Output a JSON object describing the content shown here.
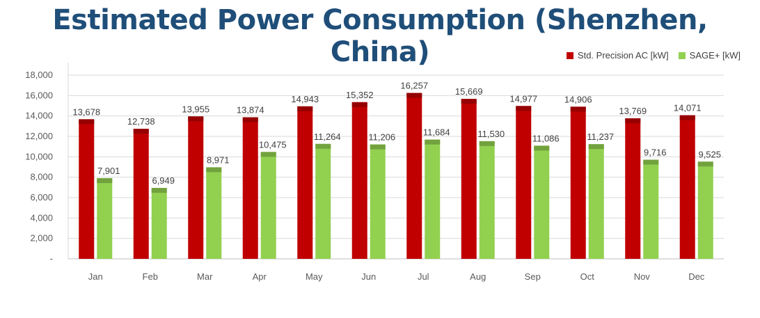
{
  "chart_data": {
    "type": "bar",
    "title": "Estimated Power Consumption (Shenzhen, China)",
    "categories": [
      "Jan",
      "Feb",
      "Mar",
      "Apr",
      "May",
      "Jun",
      "Jul",
      "Aug",
      "Sep",
      "Oct",
      "Nov",
      "Dec"
    ],
    "series": [
      {
        "name": "Std. Precision AC [kW]",
        "color": "#c00000",
        "values": [
          13678,
          12738,
          13955,
          13874,
          14943,
          15352,
          16257,
          15669,
          14977,
          14906,
          13769,
          14071
        ],
        "labels": [
          "13,678",
          "12,738",
          "13,955",
          "13,874",
          "14,943",
          "15,352",
          "16,257",
          "15,669",
          "14,977",
          "14,906",
          "13,769",
          "14,071"
        ]
      },
      {
        "name": "SAGE+ [kW]",
        "color": "#92d050",
        "values": [
          7901,
          6949,
          8971,
          10475,
          11264,
          11206,
          11684,
          11530,
          11086,
          11237,
          9716,
          9525
        ],
        "labels": [
          "7,901",
          "6,949",
          "8,971",
          "10,475",
          "11,264",
          "11,206",
          "11,684",
          "11,530",
          "11,086",
          "11,237",
          "9,716",
          "9,525"
        ]
      }
    ],
    "yticks": [
      "-",
      "2,000",
      "4,000",
      "6,000",
      "8,000",
      "10,000",
      "12,000",
      "14,000",
      "16,000",
      "18,000"
    ],
    "ylim": [
      0,
      18000
    ],
    "grid": true,
    "legend_position": "top-right"
  }
}
